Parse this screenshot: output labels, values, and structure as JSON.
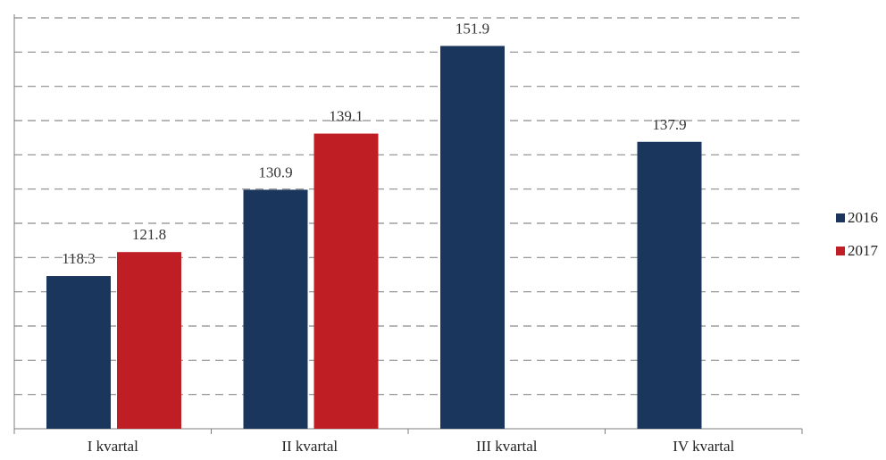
{
  "chart_data": {
    "type": "bar",
    "categories": [
      "I kvartal",
      "II kvartal",
      "III kvartal",
      "IV kvartal"
    ],
    "series": [
      {
        "name": "2016",
        "values": [
          118.3,
          130.9,
          151.9,
          137.9
        ],
        "color": "#1b365d"
      },
      {
        "name": "2017",
        "values": [
          121.8,
          139.1,
          null,
          null
        ],
        "color": "#be1e24"
      }
    ],
    "ylim": [
      96,
      156
    ],
    "grid": true,
    "grid_step": 5,
    "legend_position": "right",
    "data_labels": true
  }
}
